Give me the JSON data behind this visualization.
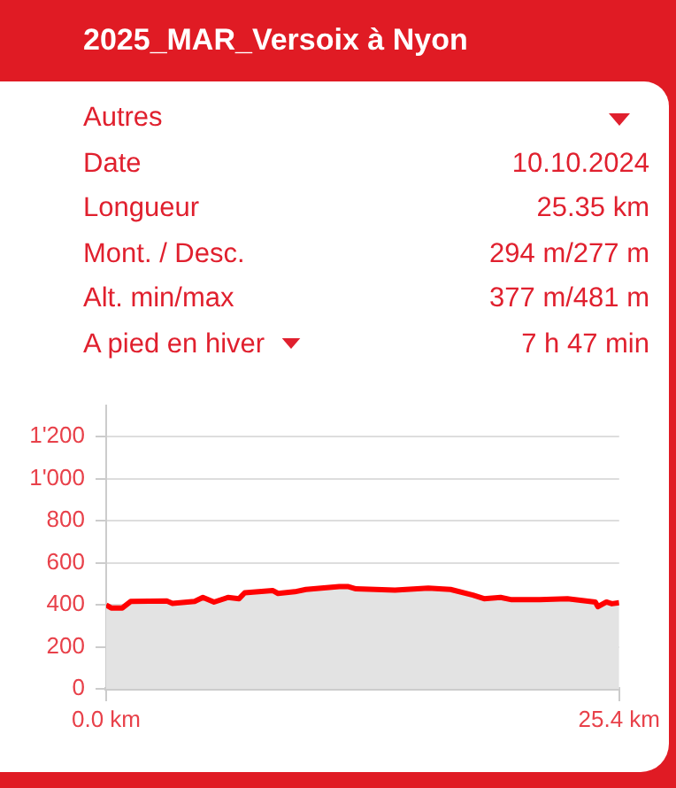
{
  "chart_data": {
    "type": "area",
    "title": "2025_MAR_Versoix à Nyon",
    "annotations": [
      "Autres",
      "Date",
      "10.10.2024",
      "Longueur",
      "25.35 km",
      "Mont. / Desc.",
      "294 m/277 m",
      "Alt. min/max",
      "377 m/481 m",
      "A pied en hiver",
      "7 h 47 min"
    ],
    "x": [
      0,
      0.25,
      0.8,
      1.21,
      3.0,
      3.28,
      4.38,
      4.79,
      5.34,
      6.03,
      6.58,
      6.86,
      8.24,
      8.51,
      9.34,
      9.89,
      11.54,
      11.96,
      12.37,
      14.3,
      15.95,
      17.05,
      18.16,
      18.71,
      19.53,
      20.08,
      21.46,
      22.84,
      24.22,
      24.35,
      24.77,
      25.04,
      25.4
    ],
    "series": [
      {
        "color": "#ff0000",
        "values": [
          399,
          385,
          385,
          416,
          418,
          407,
          416,
          435,
          413,
          435,
          429,
          457,
          468,
          454,
          462,
          473,
          487,
          487,
          476,
          470,
          479,
          473,
          446,
          429,
          435,
          424,
          424,
          429,
          413,
          391,
          413,
          405,
          410
        ]
      }
    ],
    "xlim": [
      0,
      25.4
    ],
    "xticks": [
      {
        "value": 0,
        "label": "0.0 km"
      },
      {
        "value": 25.4,
        "label": "25.4 km"
      }
    ],
    "ylim": [
      0,
      1350
    ],
    "yticks": [
      0,
      200,
      400,
      600,
      800,
      {
        "value": 1000,
        "label": "1'000"
      },
      {
        "value": 1200,
        "label": "1'200"
      }
    ],
    "grid": "y",
    "marker": "none",
    "line_style": "solid",
    "legend": false
  }
}
